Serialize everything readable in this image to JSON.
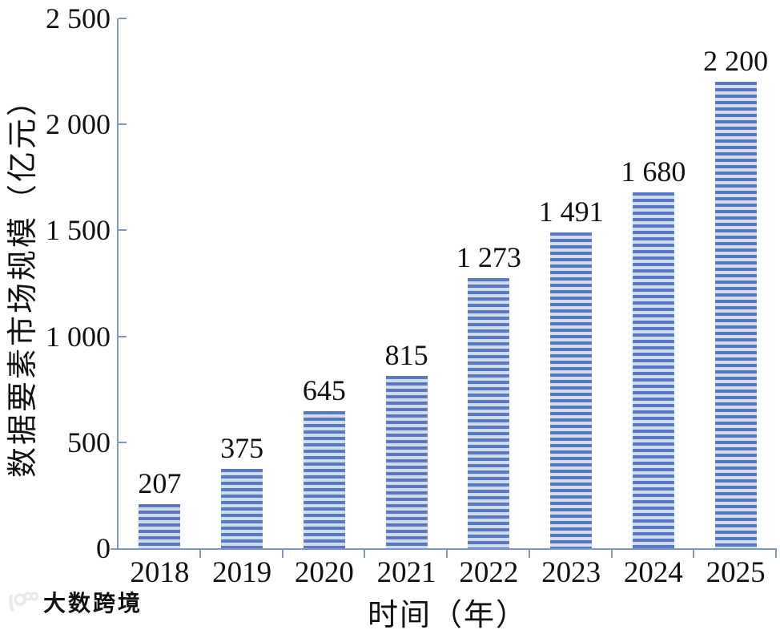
{
  "chart_data": {
    "type": "bar",
    "title": "",
    "categories": [
      "2018",
      "2019",
      "2020",
      "2021",
      "2022",
      "2023",
      "2024",
      "2025"
    ],
    "values": [
      207,
      375,
      645,
      815,
      1273,
      1491,
      1680,
      2200
    ],
    "value_labels": [
      "207",
      "375",
      "645",
      "815",
      "1 273",
      "1 491",
      "1 680",
      "2 200"
    ],
    "xlabel": "时间（年）",
    "ylabel": "数据要素市场规模（亿元）",
    "ylim": [
      0,
      2500
    ],
    "yticks": [
      0,
      500,
      1000,
      1500,
      2000,
      2500
    ],
    "ytick_labels": [
      "0",
      "500",
      "1 000",
      "1 500",
      "2 000",
      "2 500"
    ],
    "grid": false,
    "legend": null,
    "bar_pattern": "horizontal-stripes",
    "colors": {
      "stripe_dark": "#5b79bd",
      "stripe_light": "#cfdcf2",
      "axis": "#7e96c6",
      "text": "#111111"
    }
  },
  "watermark": {
    "text": "大数跨境",
    "logo": "infinity-circles-logo",
    "color": "#e9e9e9"
  }
}
